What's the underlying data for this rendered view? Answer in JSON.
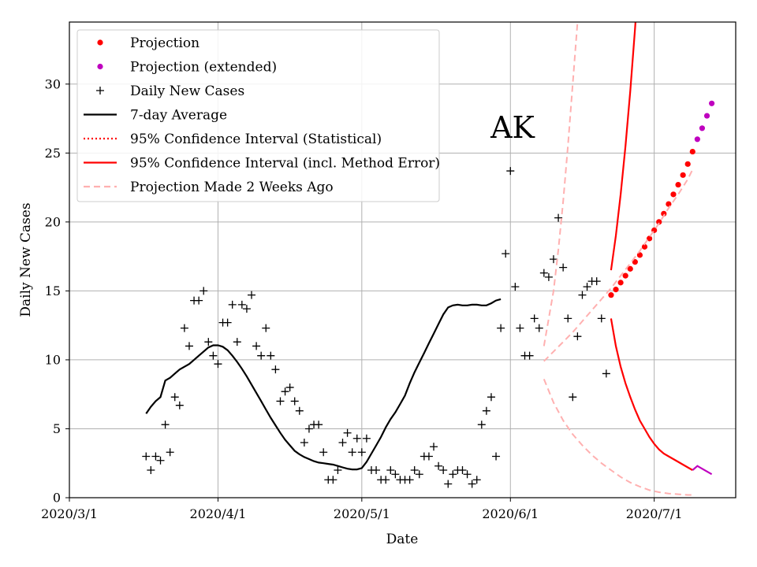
{
  "chart_data": {
    "type": "line",
    "title": "",
    "annotation": "AK",
    "xlabel": "Date",
    "ylabel": "Daily New Cases",
    "xlim_days": [
      0,
      139
    ],
    "ylim": [
      0,
      34.5
    ],
    "x_ticks": [
      {
        "day": 0,
        "label": "2020/3/1"
      },
      {
        "day": 31,
        "label": "2020/4/1"
      },
      {
        "day": 61,
        "label": "2020/5/1"
      },
      {
        "day": 92,
        "label": "2020/6/1"
      },
      {
        "day": 122,
        "label": "2020/7/1"
      }
    ],
    "y_ticks": [
      0,
      5,
      10,
      15,
      20,
      25,
      30
    ],
    "grid": true,
    "legend": {
      "position": "top-left",
      "entries": [
        {
          "label": "Projection",
          "kind": "dot",
          "color": "#ff0000"
        },
        {
          "label": "Projection (extended)",
          "kind": "dot",
          "color": "#bf00bf"
        },
        {
          "label": "Daily New Cases",
          "kind": "plus",
          "color": "#000000"
        },
        {
          "label": "7-day Average",
          "kind": "line",
          "color": "#000000"
        },
        {
          "label": "95% Confidence Interval (Statistical)",
          "kind": "dotted",
          "color": "#ff0000"
        },
        {
          "label": "95% Confidence Interval (incl. Method Error)",
          "kind": "line",
          "color": "#ff0000"
        },
        {
          "label": "Projection Made 2 Weeks Ago",
          "kind": "dashed",
          "color": "#ffb0b0"
        }
      ]
    },
    "series": [
      {
        "name": "Daily New Cases",
        "style": "plus",
        "color": "#000000",
        "points": [
          [
            16,
            3
          ],
          [
            17,
            2
          ],
          [
            18,
            3
          ],
          [
            19,
            2.7
          ],
          [
            20,
            5.3
          ],
          [
            21,
            3.3
          ],
          [
            22,
            7.3
          ],
          [
            23,
            6.7
          ],
          [
            24,
            12.3
          ],
          [
            25,
            11
          ],
          [
            26,
            14.3
          ],
          [
            27,
            14.3
          ],
          [
            28,
            15
          ],
          [
            29,
            11.3
          ],
          [
            30,
            10.3
          ],
          [
            31,
            9.7
          ],
          [
            32,
            12.7
          ],
          [
            33,
            12.7
          ],
          [
            34,
            14
          ],
          [
            35,
            11.3
          ],
          [
            36,
            14
          ],
          [
            37,
            13.7
          ],
          [
            38,
            14.7
          ],
          [
            39,
            11
          ],
          [
            40,
            10.3
          ],
          [
            41,
            12.3
          ],
          [
            42,
            10.3
          ],
          [
            43,
            9.3
          ],
          [
            44,
            7
          ],
          [
            45,
            7.7
          ],
          [
            46,
            8
          ],
          [
            47,
            7
          ],
          [
            48,
            6.3
          ],
          [
            49,
            4
          ],
          [
            50,
            5
          ],
          [
            51,
            5.3
          ],
          [
            52,
            5.3
          ],
          [
            53,
            3.3
          ],
          [
            54,
            1.3
          ],
          [
            55,
            1.3
          ],
          [
            56,
            2
          ],
          [
            57,
            4
          ],
          [
            58,
            4.7
          ],
          [
            59,
            3.3
          ],
          [
            60,
            4.3
          ],
          [
            61,
            3.3
          ],
          [
            62,
            4.3
          ],
          [
            63,
            2
          ],
          [
            64,
            2
          ],
          [
            65,
            1.3
          ],
          [
            66,
            1.3
          ],
          [
            67,
            2
          ],
          [
            68,
            1.7
          ],
          [
            69,
            1.3
          ],
          [
            70,
            1.3
          ],
          [
            71,
            1.3
          ],
          [
            72,
            2
          ],
          [
            73,
            1.7
          ],
          [
            74,
            3
          ],
          [
            75,
            3
          ],
          [
            76,
            3.7
          ],
          [
            77,
            2.3
          ],
          [
            78,
            2
          ],
          [
            79,
            1
          ],
          [
            80,
            1.7
          ],
          [
            81,
            2
          ],
          [
            82,
            2
          ],
          [
            83,
            1.7
          ],
          [
            84,
            1
          ],
          [
            85,
            1.3
          ],
          [
            86,
            5.3
          ],
          [
            87,
            6.3
          ],
          [
            88,
            7.3
          ],
          [
            89,
            3
          ],
          [
            90,
            12.3
          ],
          [
            91,
            17.7
          ],
          [
            92,
            23.7
          ],
          [
            93,
            15.3
          ],
          [
            94,
            12.3
          ],
          [
            95,
            10.3
          ],
          [
            96,
            10.3
          ],
          [
            97,
            13
          ],
          [
            98,
            12.3
          ],
          [
            99,
            16.3
          ],
          [
            100,
            16
          ],
          [
            101,
            17.3
          ],
          [
            102,
            20.3
          ],
          [
            103,
            16.7
          ],
          [
            104,
            13
          ],
          [
            105,
            7.3
          ],
          [
            106,
            11.7
          ],
          [
            107,
            14.7
          ],
          [
            108,
            15.3
          ],
          [
            109,
            15.7
          ],
          [
            110,
            15.7
          ],
          [
            111,
            13
          ],
          [
            112,
            9
          ]
        ]
      },
      {
        "name": "7-day Average",
        "style": "line",
        "color": "#000000",
        "points": [
          [
            16,
            6.1
          ],
          [
            17,
            6.6
          ],
          [
            18,
            7
          ],
          [
            19,
            7.3
          ],
          [
            20,
            8.5
          ],
          [
            21,
            8.7
          ],
          [
            22,
            9
          ],
          [
            23,
            9.3
          ],
          [
            24,
            9.5
          ],
          [
            25,
            9.7
          ],
          [
            26,
            10
          ],
          [
            27,
            10.3
          ],
          [
            28,
            10.6
          ],
          [
            29,
            10.9
          ],
          [
            30,
            11.05
          ],
          [
            31,
            11.05
          ],
          [
            32,
            10.95
          ],
          [
            33,
            10.7
          ],
          [
            34,
            10.3
          ],
          [
            35,
            9.85
          ],
          [
            36,
            9.35
          ],
          [
            37,
            8.8
          ],
          [
            38,
            8.2
          ],
          [
            39,
            7.6
          ],
          [
            40,
            7
          ],
          [
            41,
            6.4
          ],
          [
            42,
            5.8
          ],
          [
            43,
            5.25
          ],
          [
            44,
            4.7
          ],
          [
            45,
            4.2
          ],
          [
            46,
            3.8
          ],
          [
            47,
            3.4
          ],
          [
            48,
            3.15
          ],
          [
            49,
            2.95
          ],
          [
            50,
            2.8
          ],
          [
            51,
            2.65
          ],
          [
            52,
            2.55
          ],
          [
            53,
            2.5
          ],
          [
            54,
            2.45
          ],
          [
            55,
            2.4
          ],
          [
            56,
            2.3
          ],
          [
            57,
            2.2
          ],
          [
            58,
            2.1
          ],
          [
            59,
            2.05
          ],
          [
            60,
            2.05
          ],
          [
            61,
            2.15
          ],
          [
            62,
            2.6
          ],
          [
            63,
            3.2
          ],
          [
            64,
            3.8
          ],
          [
            65,
            4.4
          ],
          [
            66,
            5.1
          ],
          [
            67,
            5.7
          ],
          [
            68,
            6.2
          ],
          [
            69,
            6.8
          ],
          [
            70,
            7.4
          ],
          [
            71,
            8.3
          ],
          [
            72,
            9.1
          ],
          [
            73,
            9.8
          ],
          [
            74,
            10.5
          ],
          [
            75,
            11.2
          ],
          [
            76,
            11.9
          ],
          [
            77,
            12.6
          ],
          [
            78,
            13.3
          ],
          [
            79,
            13.8
          ],
          [
            80,
            13.95
          ],
          [
            81,
            14
          ],
          [
            82,
            13.95
          ],
          [
            83,
            13.95
          ],
          [
            84,
            14
          ],
          [
            85,
            14
          ],
          [
            86,
            13.95
          ],
          [
            87,
            13.95
          ],
          [
            88,
            14.1
          ],
          [
            89,
            14.3
          ],
          [
            90,
            14.4
          ]
        ]
      },
      {
        "name": "Projection",
        "style": "dots",
        "color": "#ff0000",
        "points": [
          [
            113,
            14.7
          ],
          [
            114,
            15.1
          ],
          [
            115,
            15.6
          ],
          [
            116,
            16.1
          ],
          [
            117,
            16.6
          ],
          [
            118,
            17.1
          ],
          [
            119,
            17.6
          ],
          [
            120,
            18.2
          ],
          [
            121,
            18.8
          ],
          [
            122,
            19.4
          ],
          [
            123,
            20.0
          ],
          [
            124,
            20.6
          ],
          [
            125,
            21.3
          ],
          [
            126,
            22.0
          ],
          [
            127,
            22.7
          ],
          [
            128,
            23.4
          ],
          [
            129,
            24.2
          ],
          [
            130,
            25.1
          ]
        ]
      },
      {
        "name": "Projection (extended)",
        "style": "dots",
        "color": "#bf00bf",
        "points": [
          [
            131,
            26.0
          ],
          [
            132,
            26.8
          ],
          [
            133,
            27.7
          ],
          [
            134,
            28.6
          ]
        ]
      },
      {
        "name": "95% CI (incl. Method Error) upper",
        "style": "line",
        "color": "#ff0000",
        "points": [
          [
            113,
            16.5
          ],
          [
            114,
            19
          ],
          [
            115,
            22
          ],
          [
            116,
            25.5
          ],
          [
            117,
            29.5
          ],
          [
            118,
            34
          ],
          [
            118.1,
            34.5
          ]
        ]
      },
      {
        "name": "95% CI (incl. Method Error) lower",
        "style": "line",
        "color": "#ff0000",
        "points": [
          [
            113,
            13
          ],
          [
            114,
            11
          ],
          [
            115,
            9.5
          ],
          [
            116,
            8.3
          ],
          [
            117,
            7.3
          ],
          [
            118,
            6.4
          ],
          [
            119,
            5.6
          ],
          [
            120,
            5
          ],
          [
            121,
            4.4
          ],
          [
            122,
            3.9
          ],
          [
            123,
            3.5
          ],
          [
            124,
            3.2
          ],
          [
            125,
            3
          ],
          [
            126,
            2.8
          ],
          [
            127,
            2.6
          ],
          [
            128,
            2.4
          ],
          [
            129,
            2.2
          ],
          [
            130,
            2
          ]
        ]
      },
      {
        "name": "95% CI (incl. Method Error) lower (extended)",
        "style": "line",
        "color": "#bf00bf",
        "points": [
          [
            130,
            2
          ],
          [
            131,
            2.3
          ],
          [
            132,
            2.1
          ],
          [
            133,
            1.9
          ],
          [
            134,
            1.7
          ]
        ]
      },
      {
        "name": "Projection Made 2 Weeks Ago",
        "style": "dashed",
        "color": "#ffb0b0",
        "points": [
          [
            99,
            9.9
          ],
          [
            101,
            10.6
          ],
          [
            103,
            11.3
          ],
          [
            105,
            12
          ],
          [
            107,
            12.8
          ],
          [
            109,
            13.6
          ],
          [
            111,
            14.4
          ],
          [
            113,
            15.2
          ],
          [
            115,
            16.1
          ],
          [
            117,
            17
          ],
          [
            119,
            17.9
          ],
          [
            121,
            18.9
          ],
          [
            123,
            19.9
          ],
          [
            125,
            21
          ],
          [
            127,
            22
          ],
          [
            129,
            23.1
          ],
          [
            130,
            23.8
          ]
        ]
      },
      {
        "name": "Projection Made 2 Weeks Ago upper",
        "style": "dashed",
        "color": "#ffb0b0",
        "points": [
          [
            99,
            11
          ],
          [
            100,
            13
          ],
          [
            101,
            15
          ],
          [
            102,
            18
          ],
          [
            103,
            21.5
          ],
          [
            104,
            25.5
          ],
          [
            105,
            30
          ],
          [
            106,
            34.5
          ]
        ]
      },
      {
        "name": "Projection Made 2 Weeks Ago lower",
        "style": "dashed",
        "color": "#ffb0b0",
        "points": [
          [
            99,
            8.6
          ],
          [
            101,
            6.9
          ],
          [
            103,
            5.6
          ],
          [
            105,
            4.6
          ],
          [
            107,
            3.8
          ],
          [
            109,
            3.1
          ],
          [
            111,
            2.5
          ],
          [
            113,
            2
          ],
          [
            115,
            1.5
          ],
          [
            117,
            1.1
          ],
          [
            119,
            0.8
          ],
          [
            121,
            0.55
          ],
          [
            123,
            0.4
          ],
          [
            125,
            0.3
          ],
          [
            127,
            0.25
          ],
          [
            129,
            0.2
          ],
          [
            130,
            0.2
          ]
        ]
      }
    ]
  }
}
